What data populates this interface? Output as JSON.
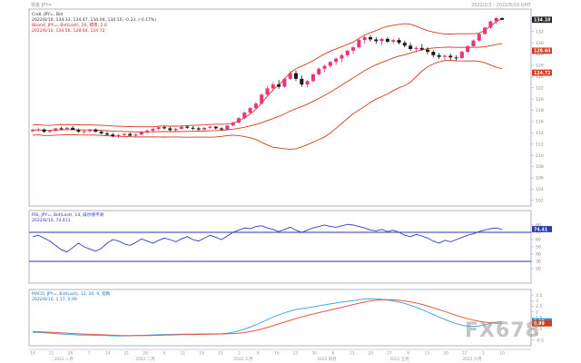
{
  "header": {
    "top_left": "現金 JPY=",
    "top_right": "2022/2/3 - 2022/8/10 GMT"
  },
  "chart_data": [
    {
      "type": "candlestick",
      "title": "Cndl, JPY=, Bid",
      "info_lines": [
        "Cndl, JPY=, Bid",
        "2022/6/10, 134.33, 134.47, 134.04, 134.10, -0.23, (-0.17%)",
        "Bband, JPY=, Bid(Last), 20, 標準, 2.0",
        "2022/6/10, 134.56, 128.64, 124.72"
      ],
      "ylim": [
        101,
        136
      ],
      "y_ticks": [
        102,
        104,
        106,
        108,
        110,
        112,
        114,
        116,
        118,
        120,
        122,
        124,
        126,
        128,
        130,
        132,
        134
      ],
      "tags": [
        {
          "label": "134.10",
          "value": 134.1,
          "color": "#222222"
        },
        {
          "label": "128.64",
          "value": 128.6,
          "color": "#d43c1e"
        },
        {
          "label": "124.72",
          "value": 124.7,
          "color": "#d43c1e"
        }
      ],
      "candles": [
        [
          114.3,
          114.7,
          114.1,
          114.5
        ],
        [
          114.5,
          114.9,
          114.2,
          114.6
        ],
        [
          114.6,
          114.8,
          114.0,
          114.2
        ],
        [
          114.2,
          114.6,
          113.9,
          114.4
        ],
        [
          114.4,
          114.9,
          114.2,
          114.8
        ],
        [
          114.8,
          115.1,
          114.5,
          114.7
        ],
        [
          114.7,
          115.0,
          114.4,
          114.9
        ],
        [
          114.9,
          115.2,
          114.6,
          114.5
        ],
        [
          114.5,
          114.8,
          114.0,
          114.2
        ],
        [
          114.2,
          114.6,
          113.8,
          114.3
        ],
        [
          114.3,
          114.7,
          114.0,
          114.6
        ],
        [
          114.6,
          114.8,
          114.1,
          114.2
        ],
        [
          114.2,
          114.5,
          113.7,
          113.9
        ],
        [
          113.9,
          114.2,
          113.5,
          113.7
        ],
        [
          113.7,
          114.0,
          113.2,
          113.4
        ],
        [
          113.4,
          113.8,
          113.1,
          113.6
        ],
        [
          113.6,
          114.0,
          113.3,
          113.8
        ],
        [
          113.8,
          114.1,
          113.4,
          113.5
        ],
        [
          113.5,
          113.9,
          113.2,
          113.7
        ],
        [
          113.7,
          114.3,
          113.6,
          114.2
        ],
        [
          114.2,
          114.6,
          113.9,
          114.4
        ],
        [
          114.4,
          114.9,
          114.1,
          114.7
        ],
        [
          114.7,
          115.2,
          114.5,
          115.0
        ],
        [
          115.0,
          115.3,
          114.6,
          114.8
        ],
        [
          114.8,
          115.1,
          114.3,
          114.5
        ],
        [
          114.5,
          114.9,
          114.3,
          114.7
        ],
        [
          114.7,
          115.2,
          114.6,
          115.1
        ],
        [
          115.1,
          115.3,
          114.7,
          114.9
        ],
        [
          114.9,
          115.2,
          114.5,
          114.8
        ],
        [
          114.8,
          115.1,
          114.4,
          114.6
        ],
        [
          114.6,
          115.0,
          114.3,
          114.9
        ],
        [
          114.9,
          115.3,
          114.7,
          115.1
        ],
        [
          115.1,
          115.2,
          114.6,
          114.8
        ],
        [
          114.8,
          115.0,
          114.4,
          114.6
        ],
        [
          114.6,
          115.4,
          114.5,
          115.3
        ],
        [
          115.3,
          116.0,
          115.2,
          115.8
        ],
        [
          115.8,
          116.8,
          115.7,
          116.6
        ],
        [
          116.6,
          117.8,
          116.4,
          117.6
        ],
        [
          117.6,
          118.6,
          117.3,
          118.4
        ],
        [
          118.4,
          119.5,
          118.2,
          119.2
        ],
        [
          119.2,
          121.0,
          119.0,
          120.8
        ],
        [
          120.8,
          122.4,
          120.6,
          121.9
        ],
        [
          121.9,
          123.0,
          121.4,
          122.6
        ],
        [
          122.6,
          123.4,
          121.8,
          122.2
        ],
        [
          122.2,
          123.8,
          122.0,
          123.6
        ],
        [
          123.6,
          125.0,
          123.4,
          124.6
        ],
        [
          124.6,
          125.1,
          123.2,
          123.6
        ],
        [
          123.6,
          124.2,
          122.2,
          122.6
        ],
        [
          122.6,
          123.4,
          122.1,
          123.2
        ],
        [
          123.2,
          124.6,
          123.0,
          124.4
        ],
        [
          124.4,
          125.6,
          124.2,
          125.4
        ],
        [
          125.4,
          126.1,
          124.8,
          125.9
        ],
        [
          125.9,
          126.8,
          125.5,
          126.6
        ],
        [
          126.6,
          127.4,
          126.1,
          127.2
        ],
        [
          127.2,
          128.1,
          126.6,
          127.8
        ],
        [
          127.8,
          128.8,
          127.4,
          128.6
        ],
        [
          128.6,
          129.4,
          128.0,
          129.2
        ],
        [
          129.2,
          130.8,
          129.0,
          130.5
        ],
        [
          130.5,
          131.3,
          129.8,
          131.0
        ],
        [
          131.0,
          131.4,
          130.2,
          130.6
        ],
        [
          130.6,
          131.0,
          129.8,
          130.3
        ],
        [
          130.3,
          130.9,
          129.6,
          130.7
        ],
        [
          130.7,
          131.0,
          130.0,
          130.2
        ],
        [
          130.2,
          130.7,
          129.8,
          130.5
        ],
        [
          130.5,
          130.9,
          129.7,
          130.0
        ],
        [
          130.0,
          130.4,
          129.2,
          129.5
        ],
        [
          129.5,
          130.0,
          128.6,
          128.9
        ],
        [
          128.9,
          129.4,
          128.3,
          129.1
        ],
        [
          129.1,
          129.8,
          128.6,
          128.8
        ],
        [
          128.8,
          129.2,
          128.0,
          128.4
        ],
        [
          128.4,
          128.7,
          127.4,
          127.8
        ],
        [
          127.8,
          128.2,
          127.1,
          127.5
        ],
        [
          127.5,
          128.0,
          126.9,
          127.7
        ],
        [
          127.7,
          128.1,
          127.0,
          127.4
        ],
        [
          127.4,
          127.8,
          126.8,
          127.3
        ],
        [
          127.3,
          128.6,
          127.1,
          128.4
        ],
        [
          128.4,
          129.6,
          128.2,
          129.4
        ],
        [
          129.4,
          130.6,
          129.2,
          130.4
        ],
        [
          130.4,
          131.8,
          130.2,
          131.6
        ],
        [
          131.6,
          132.9,
          131.4,
          132.7
        ],
        [
          132.7,
          134.0,
          132.5,
          133.8
        ],
        [
          133.8,
          134.6,
          133.3,
          134.4
        ],
        [
          134.4,
          134.5,
          134.0,
          134.1
        ]
      ]
    },
    {
      "type": "line",
      "title": "RSI, JPY=, Bid(Last), 14, 威尔德平滑",
      "info_lines": [
        "RSI, JPY=, Bid(Last), 14, 威尔德平滑",
        "2022/6/10, 74.411"
      ],
      "ylim": [
        0,
        100
      ],
      "y_ticks": [
        20,
        30,
        40,
        50,
        60,
        70,
        80
      ],
      "reference_lines": [
        70,
        30
      ],
      "tags": [
        {
          "label": "74.41",
          "value": 74.4,
          "color": "#2a3ab0"
        }
      ],
      "series": [
        {
          "name": "",
          "color": "#2f3fb6",
          "values": [
            64,
            66,
            62,
            58,
            52,
            46,
            43,
            49,
            55,
            50,
            47,
            44,
            48,
            55,
            60,
            58,
            54,
            52,
            56,
            61,
            58,
            55,
            59,
            62,
            60,
            57,
            61,
            64,
            60,
            58,
            62,
            66,
            63,
            60,
            65,
            70,
            73,
            76,
            75,
            78,
            79,
            76,
            74,
            71,
            74,
            77,
            73,
            70,
            73,
            76,
            78,
            80,
            78,
            77,
            79,
            81,
            80,
            78,
            76,
            73,
            72,
            74,
            71,
            73,
            70,
            66,
            64,
            67,
            65,
            62,
            58,
            55,
            59,
            57,
            60,
            63,
            66,
            68,
            71,
            73,
            75,
            76,
            74
          ]
        }
      ]
    },
    {
      "type": "line",
      "title": "MACD, JPY=, Bid(Last), 12, 26, 9, 指数",
      "info_lines": [
        "MACD, JPY=, Bid(Last), 12, 26, 9, 指数",
        "2022/6/10, 1.17, 0.99"
      ],
      "ylim": [
        -1,
        4
      ],
      "y_ticks": [
        -0.5,
        0,
        0.5,
        1,
        1.5,
        2,
        2.5,
        3,
        3.5
      ],
      "tags": [
        {
          "label": "1.17",
          "value": 1.17,
          "color": "#1a9ad6"
        },
        {
          "label": "0.99",
          "value": 0.99,
          "color": "#d43c1e"
        }
      ],
      "series": [
        {
          "name": "",
          "color": "#4aa8e0",
          "values": [
            0.2,
            0.18,
            0.15,
            0.12,
            0.08,
            0.04,
            0.01,
            -0.02,
            -0.04,
            -0.05,
            -0.06,
            -0.07,
            -0.08,
            -0.1,
            -0.12,
            -0.13,
            -0.12,
            -0.11,
            -0.1,
            -0.08,
            -0.06,
            -0.04,
            -0.02,
            0.0,
            0.01,
            0.02,
            0.03,
            0.04,
            0.04,
            0.05,
            0.05,
            0.06,
            0.06,
            0.07,
            0.12,
            0.2,
            0.32,
            0.48,
            0.66,
            0.86,
            1.08,
            1.32,
            1.55,
            1.74,
            1.92,
            2.1,
            2.22,
            2.3,
            2.38,
            2.46,
            2.55,
            2.64,
            2.72,
            2.8,
            2.88,
            2.95,
            3.02,
            3.1,
            3.16,
            3.18,
            3.16,
            3.12,
            3.06,
            2.98,
            2.88,
            2.76,
            2.6,
            2.42,
            2.22,
            2.0,
            1.78,
            1.56,
            1.34,
            1.14,
            0.96,
            0.82,
            0.74,
            0.72,
            0.76,
            0.86,
            0.98,
            1.1,
            1.17
          ]
        },
        {
          "name": "",
          "color": "#e05a48",
          "values": [
            0.25,
            0.24,
            0.22,
            0.2,
            0.18,
            0.15,
            0.12,
            0.09,
            0.06,
            0.04,
            0.02,
            0.0,
            -0.02,
            -0.04,
            -0.06,
            -0.08,
            -0.09,
            -0.1,
            -0.1,
            -0.1,
            -0.09,
            -0.08,
            -0.07,
            -0.05,
            -0.04,
            -0.03,
            -0.02,
            -0.01,
            0.0,
            0.01,
            0.02,
            0.03,
            0.04,
            0.05,
            0.06,
            0.08,
            0.12,
            0.18,
            0.26,
            0.36,
            0.48,
            0.62,
            0.78,
            0.94,
            1.1,
            1.26,
            1.42,
            1.56,
            1.7,
            1.82,
            1.94,
            2.06,
            2.18,
            2.3,
            2.42,
            2.54,
            2.66,
            2.78,
            2.88,
            2.98,
            3.04,
            3.08,
            3.09,
            3.08,
            3.04,
            2.98,
            2.9,
            2.8,
            2.68,
            2.54,
            2.38,
            2.22,
            2.05,
            1.88,
            1.7,
            1.54,
            1.4,
            1.28,
            1.18,
            1.1,
            1.04,
            1.0,
            0.99
          ]
        }
      ]
    }
  ],
  "x_axis": {
    "day_labels": [
      "14",
      "21",
      "28",
      "7",
      "14",
      "21",
      "28",
      "4",
      "11",
      "18",
      "25",
      "2",
      "9",
      "16",
      "23",
      "30",
      "6",
      "13",
      "20",
      "27",
      "6",
      "13",
      "20",
      "27",
      "3",
      "10"
    ],
    "month_labels": [
      "2022 一月",
      "2022 二月",
      "2022 三月",
      "2022 四月",
      "2022 五月",
      "2022 六月"
    ]
  },
  "watermark": "FX678",
  "colors": {
    "up_candle": "#e8357a",
    "down_candle": "#1a1a1a",
    "bollinger": "#d43c1e",
    "rsi_line": "#2f3fb6",
    "reference_line": "#2a3ab0",
    "macd_line": "#4aa8e0",
    "signal_line": "#e05a48"
  }
}
